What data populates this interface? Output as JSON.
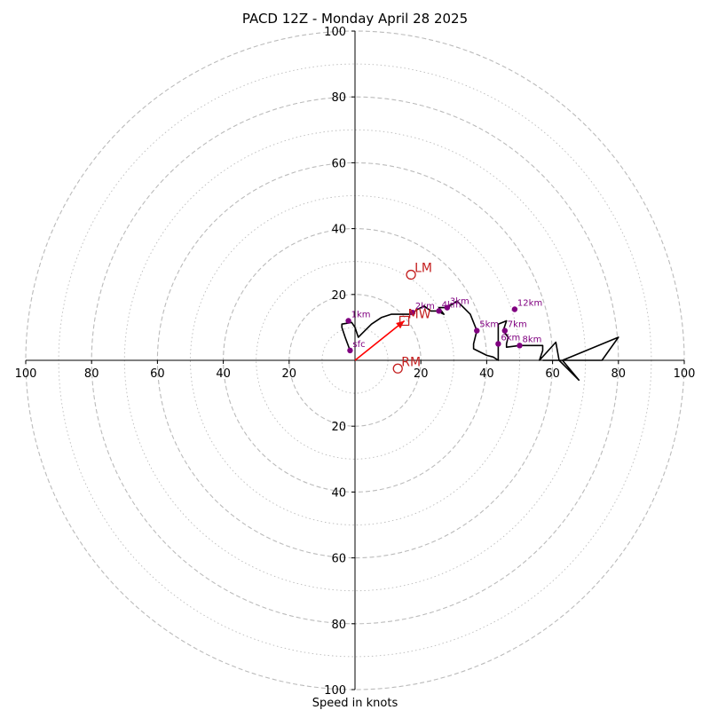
{
  "chart_data": {
    "type": "scatter",
    "title": "PACD 12Z - Monday April 28 2025",
    "xlabel": "Speed in knots",
    "ylabel": "",
    "xlim": [
      -100,
      100
    ],
    "ylim": [
      -100,
      100
    ],
    "ring_major": [
      20,
      40,
      60,
      80,
      100
    ],
    "ring_minor": [
      10,
      30,
      50,
      70,
      90
    ],
    "x_tick_labels": [
      "100",
      "80",
      "60",
      "40",
      "20",
      "20",
      "40",
      "60",
      "80",
      "100"
    ],
    "x_tick_values": [
      -100,
      -80,
      -60,
      -40,
      -20,
      20,
      40,
      60,
      80,
      100
    ],
    "y_tick_labels": [
      "100",
      "80",
      "60",
      "40",
      "20",
      "20",
      "40",
      "60",
      "80",
      "100"
    ],
    "y_tick_values": [
      100,
      80,
      60,
      40,
      20,
      -20,
      -40,
      -60,
      -80,
      -100
    ],
    "hodograph": {
      "color": "#000000",
      "points": [
        [
          -1.5,
          3
        ],
        [
          -3,
          7
        ],
        [
          -4,
          10
        ],
        [
          -4,
          11
        ],
        [
          -1,
          11.5
        ],
        [
          0,
          10
        ],
        [
          1,
          7
        ],
        [
          2,
          8
        ],
        [
          5,
          11
        ],
        [
          8,
          13
        ],
        [
          11,
          14
        ],
        [
          15,
          14
        ],
        [
          17,
          14
        ],
        [
          19,
          15.5
        ],
        [
          21,
          16.5
        ],
        [
          23,
          15
        ],
        [
          25,
          15
        ],
        [
          27,
          14
        ],
        [
          25.5,
          16
        ],
        [
          28,
          16
        ],
        [
          31,
          18
        ],
        [
          35,
          14
        ],
        [
          37,
          9
        ],
        [
          36,
          5
        ],
        [
          36,
          3.5
        ],
        [
          40,
          1.5
        ],
        [
          42,
          1
        ],
        [
          43.5,
          0
        ],
        [
          43.5,
          5
        ],
        [
          43.5,
          11
        ],
        [
          46,
          12
        ],
        [
          45,
          9
        ],
        [
          46.5,
          7
        ],
        [
          46,
          5
        ],
        [
          46,
          4
        ],
        [
          50,
          4.5
        ],
        [
          53,
          4.5
        ],
        [
          57,
          4.5
        ],
        [
          57,
          3
        ],
        [
          56,
          0
        ],
        [
          61,
          5.5
        ],
        [
          62,
          0
        ],
        [
          68,
          -6
        ],
        [
          63,
          0
        ],
        [
          80,
          7
        ],
        [
          75,
          0
        ],
        [
          57,
          0
        ]
      ]
    },
    "levels": [
      {
        "label": "sfc",
        "u": -1.5,
        "v": 3
      },
      {
        "label": "1km",
        "u": -2,
        "v": 12
      },
      {
        "label": "2km",
        "u": 17.5,
        "v": 14.5
      },
      {
        "label": "3km",
        "u": 28,
        "v": 16
      },
      {
        "label": "4km",
        "u": 25.5,
        "v": 15
      },
      {
        "label": "5km",
        "u": 37,
        "v": 9
      },
      {
        "label": "6km",
        "u": 43.5,
        "v": 5
      },
      {
        "label": "7km",
        "u": 45.5,
        "v": 9
      },
      {
        "label": "8km",
        "u": 50,
        "v": 4.5
      },
      {
        "label": "12km",
        "u": 48.5,
        "v": 15.5
      }
    ],
    "storm_markers": [
      {
        "label": "LM",
        "u": 17,
        "v": 26
      },
      {
        "label": "RM",
        "u": 13,
        "v": -2.5
      },
      {
        "label": "MW",
        "u": 15,
        "v": 12
      }
    ],
    "mean_wind_vector": {
      "u": 15,
      "v": 12,
      "color": "#ff0000"
    },
    "colors": {
      "grid": "#bbbbbb",
      "level_marker": "#800080",
      "storm_marker": "#c41e1e",
      "trace": "#000000"
    },
    "grid": true
  }
}
